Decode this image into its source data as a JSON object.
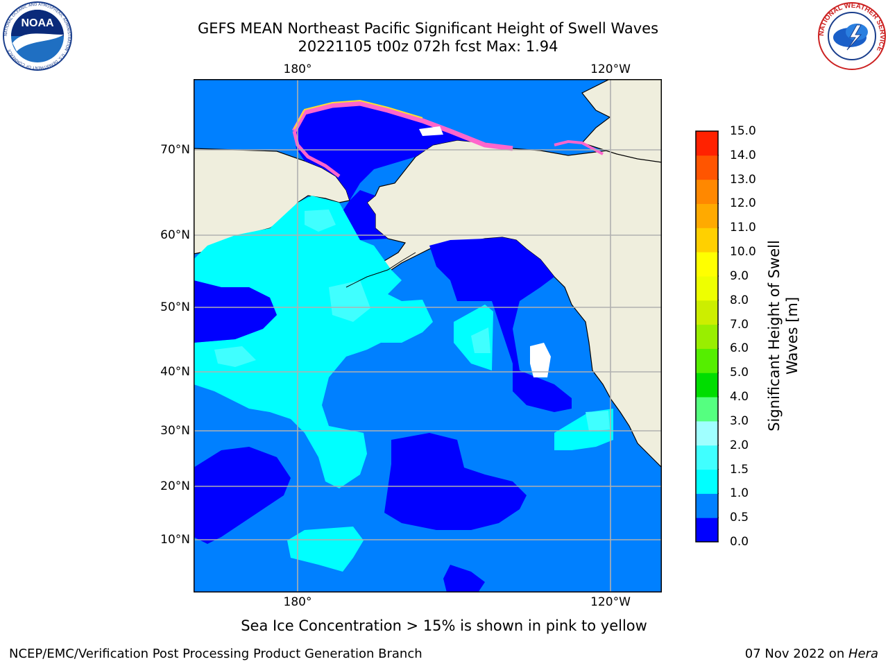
{
  "header": {
    "title_line1": "GEFS MEAN Northeast Pacific Significant Height of Swell Waves",
    "title_line2": "20221105 t00z 072h fcst   Max: 1.94"
  },
  "map": {
    "lon_labels": [
      "180°",
      "120°W"
    ],
    "lat_labels": [
      "70°N",
      "60°N",
      "50°N",
      "40°N",
      "30°N",
      "20°N",
      "10°N"
    ],
    "colors": {
      "land": "#efeedd",
      "coast": "#000000",
      "grid": "#b0b0b0",
      "sea_0_0_5": "#0000ff",
      "sea_0_5_1_0": "#0080ff",
      "sea_1_0_1_5": "#00ffff",
      "sea_1_5_2_0": "#40ffff",
      "sea_2_0_3_0": "#a0ffff",
      "ice_pink": "#ff66cc",
      "ice_yellow": "#ffdd33"
    }
  },
  "colorbar": {
    "label": "Significant Height of Swell Waves [m]",
    "label_line1": "Significant Height of Swell",
    "label_line2": "Waves [m]",
    "ticks": [
      "0.0",
      "0.5",
      "1.0",
      "1.5",
      "2.0",
      "3.0",
      "4.0",
      "5.0",
      "6.0",
      "7.0",
      "8.0",
      "9.0",
      "10.0",
      "11.0",
      "12.0",
      "13.0",
      "14.0",
      "15.0"
    ],
    "colors": [
      "#0000ff",
      "#0080ff",
      "#00ffff",
      "#40ffff",
      "#a0ffff",
      "#55ff80",
      "#00dd00",
      "#55ee00",
      "#99ee00",
      "#ccee00",
      "#eeff00",
      "#ffff00",
      "#ffd000",
      "#ffaa00",
      "#ff8800",
      "#ff5500",
      "#ff2200"
    ]
  },
  "note": "Sea Ice Concentration > 15% is shown in pink to yellow",
  "footer": {
    "left": "NCEP/EMC/Verification Post Processing Product Generation Branch",
    "right_prefix": "07 Nov 2022 on ",
    "right_machine": "Hera"
  },
  "logos": {
    "noaa_text": "NOAA",
    "noaa_ring_text": "NATIONAL OCEANIC AND ATMOSPHERIC ADMINISTRATION · U.S. DEPARTMENT OF COMMERCE",
    "nws_ring_text": "NATIONAL WEATHER SERVICE"
  }
}
